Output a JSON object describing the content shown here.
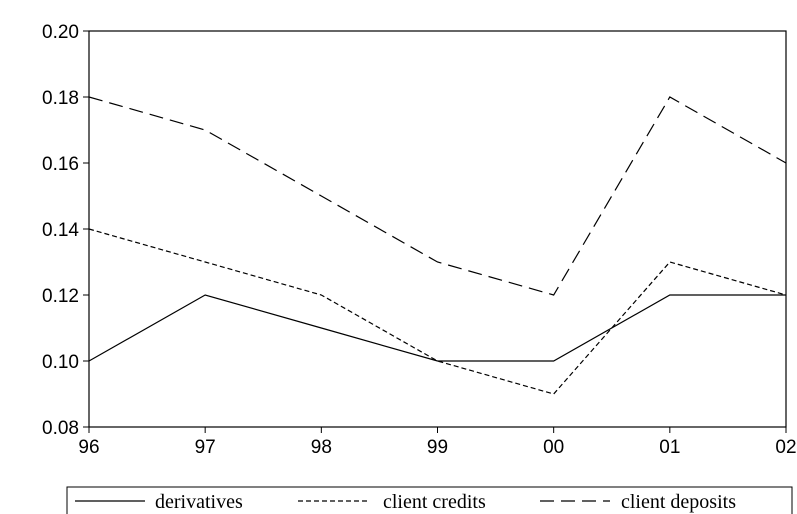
{
  "chart_data": {
    "type": "line",
    "x": [
      "96",
      "97",
      "98",
      "99",
      "00",
      "01",
      "02"
    ],
    "ylim": [
      0.08,
      0.2
    ],
    "yticks": [
      "0.08",
      "0.10",
      "0.12",
      "0.14",
      "0.16",
      "0.18",
      "0.20"
    ],
    "grid": false,
    "legend_position": "bottom",
    "series": [
      {
        "name": "derivatives",
        "style": "solid",
        "values": [
          0.1,
          0.12,
          0.11,
          0.1,
          0.1,
          0.12,
          0.12
        ]
      },
      {
        "name": "client credits",
        "style": "short-dash",
        "values": [
          0.14,
          0.13,
          0.12,
          0.1,
          0.09,
          0.13,
          0.12
        ]
      },
      {
        "name": "client deposits",
        "style": "long-dash",
        "values": [
          0.18,
          0.17,
          0.15,
          0.13,
          0.12,
          0.18,
          0.16
        ]
      }
    ],
    "colors": {
      "line": "#000000",
      "background": "#ffffff"
    }
  }
}
